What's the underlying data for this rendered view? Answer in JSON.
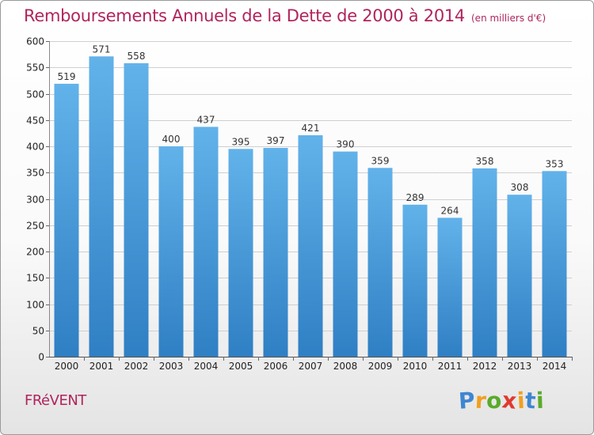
{
  "chart_data": {
    "type": "bar",
    "title": "Remboursements Annuels de la Dette de 2000 à 2014",
    "subtitle": "(en milliers d'€)",
    "categories": [
      "2000",
      "2001",
      "2002",
      "2003",
      "2004",
      "2005",
      "2006",
      "2007",
      "2008",
      "2009",
      "2010",
      "2011",
      "2012",
      "2013",
      "2014"
    ],
    "values": [
      519,
      571,
      558,
      400,
      437,
      395,
      397,
      421,
      390,
      359,
      289,
      264,
      358,
      308,
      353
    ],
    "xlabel": "",
    "ylabel": "",
    "ylim": [
      0,
      600
    ],
    "yticks": [
      0,
      50,
      100,
      150,
      200,
      250,
      300,
      350,
      400,
      450,
      500,
      550,
      600
    ],
    "grid": true,
    "bar_color_top": "#62b2ea",
    "bar_color_bottom": "#2f7fc4"
  },
  "footer": {
    "commune": "FRéVENT",
    "logo_letters": [
      "P",
      "r",
      "o",
      "x",
      "i",
      "t",
      "i"
    ],
    "logo_colors": [
      "#3f86d0",
      "#f0a020",
      "#5aaa2c",
      "#e03a2e",
      "#f0a020",
      "#3f86d0",
      "#5aaa2c"
    ]
  },
  "colors": {
    "title": "#b0245c",
    "grid": "#cfcfcf"
  }
}
